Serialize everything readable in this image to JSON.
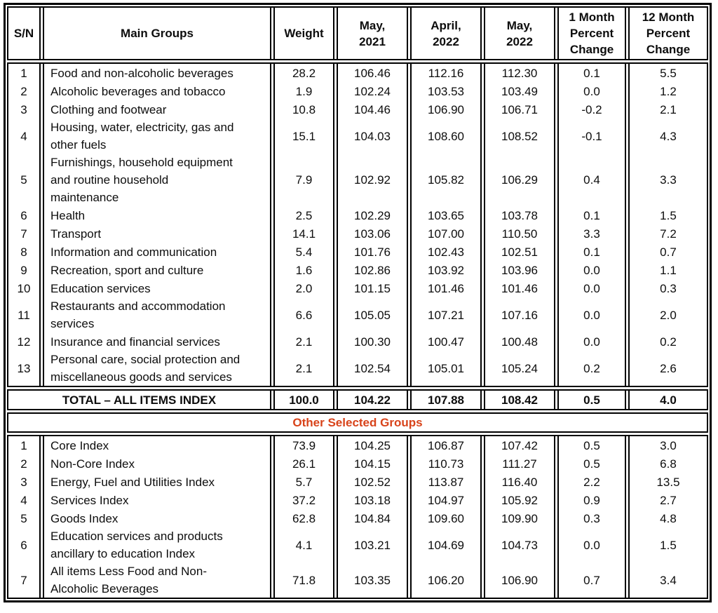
{
  "table": {
    "accent_color": "#d8431a",
    "headers": [
      "S/N",
      "Main Groups",
      "Weight",
      "May,\n2021",
      "April,\n2022",
      "May,\n2022",
      "1 Month\nPercent\nChange",
      "12 Month\nPercent\nChange"
    ],
    "main_rows": [
      {
        "sn": "1",
        "label": "Food and non-alcoholic beverages",
        "weight": "28.2",
        "may_2021": "106.46",
        "april_2022": "112.16",
        "may_2022": "112.30",
        "change_1m": "0.1",
        "change_12m": "5.5"
      },
      {
        "sn": "2",
        "label": "Alcoholic beverages and tobacco",
        "weight": "1.9",
        "may_2021": "102.24",
        "april_2022": "103.53",
        "may_2022": "103.49",
        "change_1m": "0.0",
        "change_12m": "1.2"
      },
      {
        "sn": "3",
        "label": "Clothing and footwear",
        "weight": "10.8",
        "may_2021": "104.46",
        "april_2022": "106.90",
        "may_2022": "106.71",
        "change_1m": "-0.2",
        "change_12m": "2.1"
      },
      {
        "sn": "4",
        "label": "Housing, water, electricity, gas and\nother fuels",
        "weight": "15.1",
        "may_2021": "104.03",
        "april_2022": "108.60",
        "may_2022": "108.52",
        "change_1m": "-0.1",
        "change_12m": "4.3"
      },
      {
        "sn": "5",
        "label": "Furnishings, household equipment\nand routine household\nmaintenance",
        "weight": "7.9",
        "may_2021": "102.92",
        "april_2022": "105.82",
        "may_2022": "106.29",
        "change_1m": "0.4",
        "change_12m": "3.3"
      },
      {
        "sn": "6",
        "label": "Health",
        "weight": "2.5",
        "may_2021": "102.29",
        "april_2022": "103.65",
        "may_2022": "103.78",
        "change_1m": "0.1",
        "change_12m": "1.5"
      },
      {
        "sn": "7",
        "label": "Transport",
        "weight": "14.1",
        "may_2021": "103.06",
        "april_2022": "107.00",
        "may_2022": "110.50",
        "change_1m": "3.3",
        "change_12m": "7.2"
      },
      {
        "sn": "8",
        "label": "Information and communication",
        "weight": "5.4",
        "may_2021": "101.76",
        "april_2022": "102.43",
        "may_2022": "102.51",
        "change_1m": "0.1",
        "change_12m": "0.7"
      },
      {
        "sn": "9",
        "label": "Recreation, sport and culture",
        "weight": "1.6",
        "may_2021": "102.86",
        "april_2022": "103.92",
        "may_2022": "103.96",
        "change_1m": "0.0",
        "change_12m": "1.1"
      },
      {
        "sn": "10",
        "label": "Education services",
        "weight": "2.0",
        "may_2021": "101.15",
        "april_2022": "101.46",
        "may_2022": "101.46",
        "change_1m": "0.0",
        "change_12m": "0.3"
      },
      {
        "sn": "11",
        "label": "Restaurants and accommodation\nservices",
        "weight": "6.6",
        "may_2021": "105.05",
        "april_2022": "107.21",
        "may_2022": "107.16",
        "change_1m": "0.0",
        "change_12m": "2.0"
      },
      {
        "sn": "12",
        "label": "Insurance and financial services",
        "weight": "2.1",
        "may_2021": "100.30",
        "april_2022": "100.47",
        "may_2022": "100.48",
        "change_1m": "0.0",
        "change_12m": "0.2"
      },
      {
        "sn": "13",
        "label": "Personal care, social protection and\nmiscellaneous goods and services",
        "weight": "2.1",
        "may_2021": "102.54",
        "april_2022": "105.01",
        "may_2022": "105.24",
        "change_1m": "0.2",
        "change_12m": "2.6"
      }
    ],
    "total_row": {
      "label": "TOTAL – ALL ITEMS INDEX",
      "weight": "100.0",
      "may_2021": "104.22",
      "april_2022": "107.88",
      "may_2022": "108.42",
      "change_1m": "0.5",
      "change_12m": "4.0"
    },
    "section_title": "Other Selected Groups",
    "other_rows": [
      {
        "sn": "1",
        "label": "Core Index",
        "weight": "73.9",
        "may_2021": "104.25",
        "april_2022": "106.87",
        "may_2022": "107.42",
        "change_1m": "0.5",
        "change_12m": "3.0"
      },
      {
        "sn": "2",
        "label": "Non-Core Index",
        "weight": "26.1",
        "may_2021": "104.15",
        "april_2022": "110.73",
        "may_2022": "111.27",
        "change_1m": "0.5",
        "change_12m": "6.8"
      },
      {
        "sn": "3",
        "label": "Energy, Fuel and Utilities Index",
        "weight": "5.7",
        "may_2021": "102.52",
        "april_2022": "113.87",
        "may_2022": "116.40",
        "change_1m": "2.2",
        "change_12m": "13.5"
      },
      {
        "sn": "4",
        "label": "Services Index",
        "weight": "37.2",
        "may_2021": "103.18",
        "april_2022": "104.97",
        "may_2022": "105.92",
        "change_1m": "0.9",
        "change_12m": "2.7"
      },
      {
        "sn": "5",
        "label": "Goods Index",
        "weight": "62.8",
        "may_2021": "104.84",
        "april_2022": "109.60",
        "may_2022": "109.90",
        "change_1m": "0.3",
        "change_12m": "4.8"
      },
      {
        "sn": "6",
        "label": "Education services and products\nancillary to education Index",
        "weight": "4.1",
        "may_2021": "103.21",
        "april_2022": "104.69",
        "may_2022": "104.73",
        "change_1m": "0.0",
        "change_12m": "1.5"
      },
      {
        "sn": "7",
        "label": "All items Less Food and Non-\nAlcoholic Beverages",
        "weight": "71.8",
        "may_2021": "103.35",
        "april_2022": "106.20",
        "may_2022": "106.90",
        "change_1m": "0.7",
        "change_12m": "3.4"
      }
    ]
  },
  "chart_data": {
    "type": "table",
    "columns": [
      "S/N",
      "Main Groups",
      "Weight",
      "May, 2021",
      "April, 2022",
      "May, 2022",
      "1 Month Percent Change",
      "12 Month Percent Change"
    ],
    "main_rows": [
      [
        "1",
        "Food and non-alcoholic beverages",
        28.2,
        106.46,
        112.16,
        112.3,
        0.1,
        5.5
      ],
      [
        "2",
        "Alcoholic beverages and tobacco",
        1.9,
        102.24,
        103.53,
        103.49,
        0.0,
        1.2
      ],
      [
        "3",
        "Clothing and footwear",
        10.8,
        104.46,
        106.9,
        106.71,
        -0.2,
        2.1
      ],
      [
        "4",
        "Housing, water, electricity, gas and other fuels",
        15.1,
        104.03,
        108.6,
        108.52,
        -0.1,
        4.3
      ],
      [
        "5",
        "Furnishings, household equipment and routine household maintenance",
        7.9,
        102.92,
        105.82,
        106.29,
        0.4,
        3.3
      ],
      [
        "6",
        "Health",
        2.5,
        102.29,
        103.65,
        103.78,
        0.1,
        1.5
      ],
      [
        "7",
        "Transport",
        14.1,
        103.06,
        107.0,
        110.5,
        3.3,
        7.2
      ],
      [
        "8",
        "Information and communication",
        5.4,
        101.76,
        102.43,
        102.51,
        0.1,
        0.7
      ],
      [
        "9",
        "Recreation, sport and culture",
        1.6,
        102.86,
        103.92,
        103.96,
        0.0,
        1.1
      ],
      [
        "10",
        "Education services",
        2.0,
        101.15,
        101.46,
        101.46,
        0.0,
        0.3
      ],
      [
        "11",
        "Restaurants and accommodation services",
        6.6,
        105.05,
        107.21,
        107.16,
        0.0,
        2.0
      ],
      [
        "12",
        "Insurance and financial services",
        2.1,
        100.3,
        100.47,
        100.48,
        0.0,
        0.2
      ],
      [
        "13",
        "Personal care, social protection and miscellaneous goods and services",
        2.1,
        102.54,
        105.01,
        105.24,
        0.2,
        2.6
      ]
    ],
    "total_row": [
      "TOTAL – ALL ITEMS INDEX",
      100.0,
      104.22,
      107.88,
      108.42,
      0.5,
      4.0
    ],
    "section_label": "Other Selected Groups",
    "other_rows": [
      [
        "1",
        "Core Index",
        73.9,
        104.25,
        106.87,
        107.42,
        0.5,
        3.0
      ],
      [
        "2",
        "Non-Core Index",
        26.1,
        104.15,
        110.73,
        111.27,
        0.5,
        6.8
      ],
      [
        "3",
        "Energy, Fuel and Utilities Index",
        5.7,
        102.52,
        113.87,
        116.4,
        2.2,
        13.5
      ],
      [
        "4",
        "Services Index",
        37.2,
        103.18,
        104.97,
        105.92,
        0.9,
        2.7
      ],
      [
        "5",
        "Goods Index",
        62.8,
        104.84,
        109.6,
        109.9,
        0.3,
        4.8
      ],
      [
        "6",
        "Education services and products ancillary to education Index",
        4.1,
        103.21,
        104.69,
        104.73,
        0.0,
        1.5
      ],
      [
        "7",
        "All items Less Food and Non-Alcoholic Beverages",
        71.8,
        103.35,
        106.2,
        106.9,
        0.7,
        3.4
      ]
    ]
  }
}
